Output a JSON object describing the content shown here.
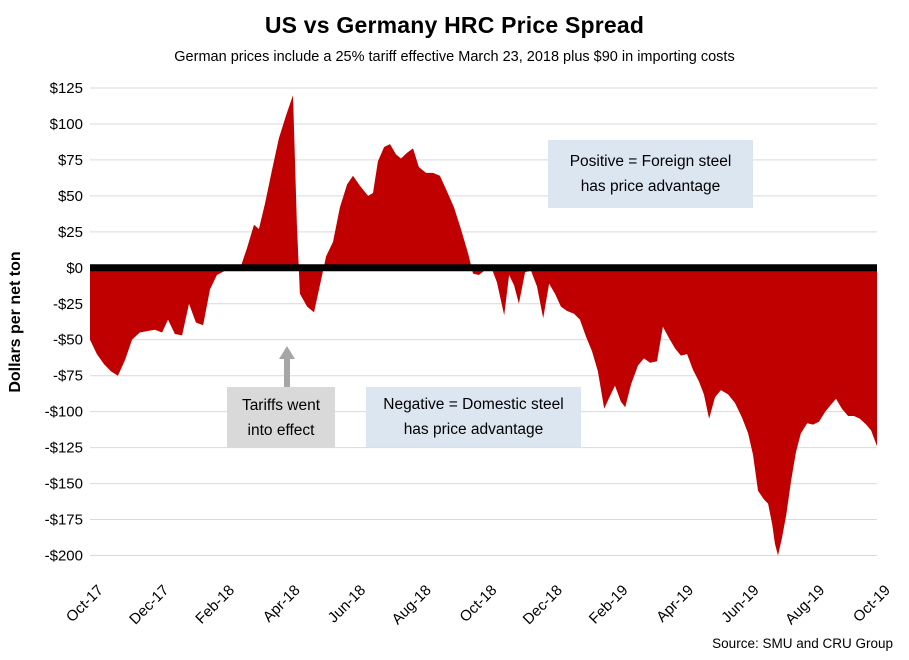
{
  "title": "US vs Germany HRC Price Spread",
  "subtitle": "German prices include a 25% tariff effective March 23, 2018 plus $90 in importing costs",
  "y_axis_title": "Dollars per net ton",
  "source": "Source: SMU and CRU Group",
  "annotations": {
    "positive_box": {
      "line1": "Positive = Foreign steel",
      "line2": "has price advantage",
      "bg": "#dce6f1"
    },
    "negative_box": {
      "line1": "Negative = Domestic steel",
      "line2": "has price advantage",
      "bg": "#dce6f1"
    },
    "tariff_box": {
      "line1": "Tariffs went",
      "line2": "into effect",
      "bg": "#d9d9d9",
      "arrow_color": "#a6a6a6"
    }
  },
  "colors": {
    "area": "#c00000",
    "gridline": "#d9d9d9",
    "zero_line": "#000000",
    "text": "#000000"
  },
  "chart_data": {
    "type": "area",
    "title": "US vs Germany HRC Price Spread",
    "xlabel": "",
    "ylabel": "Dollars per net ton",
    "x_unit": "months since Oct-2017",
    "xlim": [
      0,
      24
    ],
    "ylim": [
      -200,
      125
    ],
    "grid": true,
    "legend": "none",
    "zero_baseline": "thick black line at $0",
    "y_ticks": [
      125,
      100,
      75,
      50,
      25,
      0,
      -25,
      -50,
      -75,
      -100,
      -125,
      -150,
      -175,
      -200
    ],
    "x_tick_positions": [
      0,
      2,
      4,
      6,
      8,
      10,
      12,
      14,
      16,
      18,
      20,
      22,
      24
    ],
    "x_tick_labels": [
      "Oct-17",
      "Dec-17",
      "Feb-18",
      "Apr-18",
      "Jun-18",
      "Aug-18",
      "Oct-18",
      "Dec-18",
      "Feb-19",
      "Apr-19",
      "Jun-19",
      "Aug-19",
      "Oct-19"
    ],
    "points": [
      [
        0,
        -50
      ],
      [
        0.21,
        -60
      ],
      [
        0.43,
        -67
      ],
      [
        0.64,
        -72
      ],
      [
        0.85,
        -75
      ],
      [
        1.07,
        -64
      ],
      [
        1.28,
        -50
      ],
      [
        1.52,
        -45
      ],
      [
        1.74,
        -44
      ],
      [
        1.98,
        -43
      ],
      [
        2.2,
        -45
      ],
      [
        2.38,
        -36
      ],
      [
        2.59,
        -46
      ],
      [
        2.81,
        -47
      ],
      [
        3.02,
        -25
      ],
      [
        3.23,
        -38
      ],
      [
        3.45,
        -40
      ],
      [
        3.66,
        -15
      ],
      [
        3.87,
        -5
      ],
      [
        4.12,
        -2
      ],
      [
        4.33,
        -2
      ],
      [
        4.57,
        -1
      ],
      [
        4.79,
        14
      ],
      [
        5,
        30
      ],
      [
        5.15,
        27
      ],
      [
        5.34,
        45
      ],
      [
        5.55,
        68
      ],
      [
        5.76,
        90
      ],
      [
        5.98,
        106
      ],
      [
        6.19,
        120
      ],
      [
        6.31,
        30
      ],
      [
        6.4,
        -18
      ],
      [
        6.62,
        -27
      ],
      [
        6.83,
        -31
      ],
      [
        7.04,
        -9
      ],
      [
        7.2,
        8
      ],
      [
        7.41,
        18
      ],
      [
        7.62,
        42
      ],
      [
        7.84,
        58
      ],
      [
        8.02,
        64
      ],
      [
        8.23,
        57
      ],
      [
        8.48,
        50
      ],
      [
        8.63,
        52
      ],
      [
        8.78,
        74
      ],
      [
        8.97,
        84
      ],
      [
        9.15,
        86
      ],
      [
        9.33,
        79
      ],
      [
        9.48,
        76
      ],
      [
        9.67,
        80
      ],
      [
        9.85,
        83
      ],
      [
        10.03,
        70
      ],
      [
        10.25,
        66
      ],
      [
        10.46,
        66
      ],
      [
        10.67,
        64
      ],
      [
        10.89,
        53
      ],
      [
        11.1,
        42
      ],
      [
        11.31,
        27
      ],
      [
        11.53,
        10
      ],
      [
        11.68,
        -4
      ],
      [
        11.86,
        -5
      ],
      [
        12.08,
        -1
      ],
      [
        12.26,
        -1
      ],
      [
        12.41,
        -10
      ],
      [
        12.63,
        -33
      ],
      [
        12.78,
        -5
      ],
      [
        12.93,
        -12
      ],
      [
        13.08,
        -25
      ],
      [
        13.27,
        -3
      ],
      [
        13.45,
        -2
      ],
      [
        13.63,
        -13
      ],
      [
        13.82,
        -35
      ],
      [
        14,
        -11
      ],
      [
        14.18,
        -18
      ],
      [
        14.36,
        -27
      ],
      [
        14.55,
        -30
      ],
      [
        14.76,
        -32
      ],
      [
        14.94,
        -36
      ],
      [
        15.13,
        -48
      ],
      [
        15.31,
        -58
      ],
      [
        15.49,
        -72
      ],
      [
        15.68,
        -98
      ],
      [
        15.86,
        -89
      ],
      [
        16.01,
        -82
      ],
      [
        16.19,
        -93
      ],
      [
        16.32,
        -97
      ],
      [
        16.5,
        -81
      ],
      [
        16.71,
        -68
      ],
      [
        16.89,
        -63
      ],
      [
        17.08,
        -66
      ],
      [
        17.29,
        -65
      ],
      [
        17.47,
        -41
      ],
      [
        17.66,
        -49
      ],
      [
        17.84,
        -56
      ],
      [
        18.02,
        -61
      ],
      [
        18.21,
        -60
      ],
      [
        18.39,
        -71
      ],
      [
        18.57,
        -79
      ],
      [
        18.72,
        -88
      ],
      [
        18.88,
        -105
      ],
      [
        19.06,
        -90
      ],
      [
        19.24,
        -85
      ],
      [
        19.46,
        -88
      ],
      [
        19.67,
        -94
      ],
      [
        19.88,
        -104
      ],
      [
        20.07,
        -115
      ],
      [
        20.22,
        -130
      ],
      [
        20.37,
        -155
      ],
      [
        20.55,
        -161
      ],
      [
        20.68,
        -164
      ],
      [
        20.8,
        -178
      ],
      [
        20.89,
        -192
      ],
      [
        20.98,
        -200
      ],
      [
        21.1,
        -188
      ],
      [
        21.23,
        -172
      ],
      [
        21.38,
        -148
      ],
      [
        21.53,
        -128
      ],
      [
        21.68,
        -115
      ],
      [
        21.87,
        -108
      ],
      [
        22.05,
        -109
      ],
      [
        22.23,
        -107
      ],
      [
        22.42,
        -100
      ],
      [
        22.6,
        -95
      ],
      [
        22.75,
        -91
      ],
      [
        22.93,
        -98
      ],
      [
        23.12,
        -103
      ],
      [
        23.3,
        -103
      ],
      [
        23.48,
        -105
      ],
      [
        23.67,
        -109
      ],
      [
        23.82,
        -113
      ],
      [
        24,
        -124
      ]
    ]
  }
}
